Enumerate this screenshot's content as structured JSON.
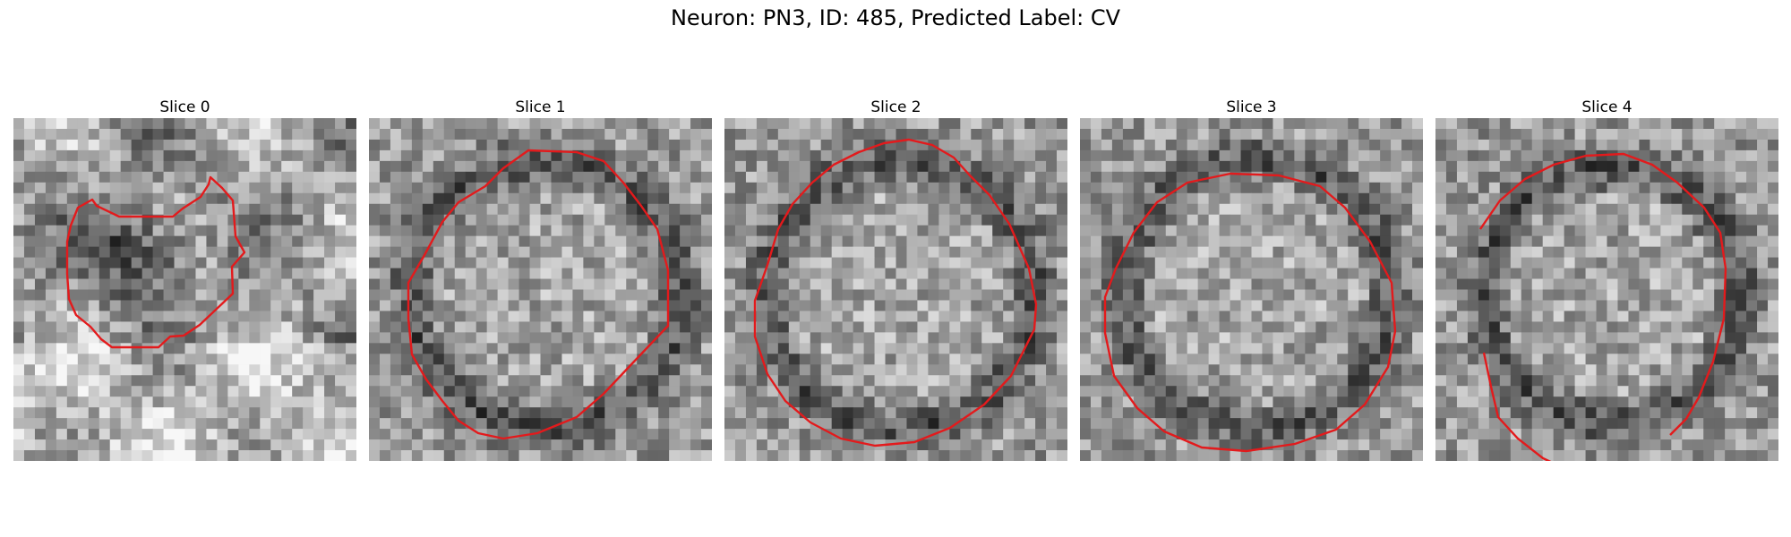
{
  "figure": {
    "title": "Neuron: PN3, ID: 485, Predicted Label: CV"
  },
  "slices": [
    {
      "label": "Slice 0",
      "type": "blob"
    },
    {
      "label": "Slice 1",
      "type": "ring"
    },
    {
      "label": "Slice 2",
      "type": "ring"
    },
    {
      "label": "Slice 3",
      "type": "ring"
    },
    {
      "label": "Slice 4",
      "type": "ring"
    }
  ],
  "contour_color": "#e31a1c",
  "colormap": "gray"
}
